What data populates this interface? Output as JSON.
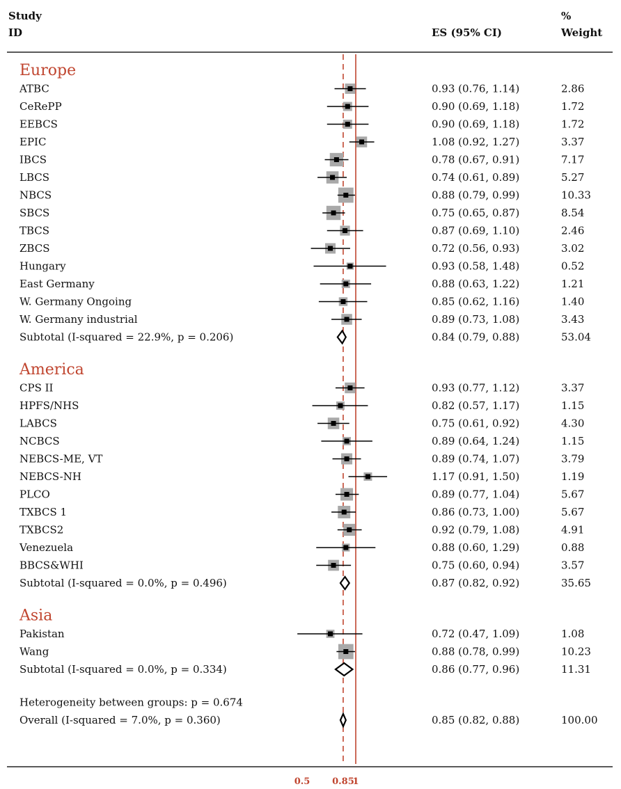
{
  "header": {
    "col_study_line1": "Study",
    "col_study_line2": "ID",
    "col_es": "ES (95% CI)",
    "col_weight_line1": "%",
    "col_weight_line2": "Weight"
  },
  "chart_data": {
    "type": "forest",
    "x_scale": "log",
    "xlim": [
      0.44,
      1.6
    ],
    "x_ticks": [
      "0.5",
      "0.85",
      "1"
    ],
    "reference_line": 1,
    "overall_line": 0.85,
    "colors": {
      "group_title": "#c0452f",
      "reference_line": "#c0452f",
      "box": "#a9a9a9",
      "line": "#000000"
    },
    "rows": [
      {
        "kind": "group",
        "label": "Europe"
      },
      {
        "kind": "study",
        "label": "ATBC",
        "es": 0.93,
        "lo": 0.76,
        "hi": 1.14,
        "ci_text": "0.93 (0.76, 1.14)",
        "weight": 2.86,
        "weight_text": "2.86"
      },
      {
        "kind": "study",
        "label": "CeRePP",
        "es": 0.9,
        "lo": 0.69,
        "hi": 1.18,
        "ci_text": "0.90 (0.69, 1.18)",
        "weight": 1.72,
        "weight_text": "1.72"
      },
      {
        "kind": "study",
        "label": "EEBCS",
        "es": 0.9,
        "lo": 0.69,
        "hi": 1.18,
        "ci_text": "0.90 (0.69, 1.18)",
        "weight": 1.72,
        "weight_text": "1.72"
      },
      {
        "kind": "study",
        "label": "EPIC",
        "es": 1.08,
        "lo": 0.92,
        "hi": 1.27,
        "ci_text": "1.08 (0.92, 1.27)",
        "weight": 3.37,
        "weight_text": "3.37"
      },
      {
        "kind": "study",
        "label": "IBCS",
        "es": 0.78,
        "lo": 0.67,
        "hi": 0.91,
        "ci_text": "0.78 (0.67, 0.91)",
        "weight": 7.17,
        "weight_text": "7.17"
      },
      {
        "kind": "study",
        "label": "LBCS",
        "es": 0.74,
        "lo": 0.61,
        "hi": 0.89,
        "ci_text": "0.74 (0.61, 0.89)",
        "weight": 5.27,
        "weight_text": "5.27"
      },
      {
        "kind": "study",
        "label": "NBCS",
        "es": 0.88,
        "lo": 0.79,
        "hi": 0.99,
        "ci_text": "0.88 (0.79, 0.99)",
        "weight": 10.33,
        "weight_text": "10.33"
      },
      {
        "kind": "study",
        "label": "SBCS",
        "es": 0.75,
        "lo": 0.65,
        "hi": 0.87,
        "ci_text": "0.75 (0.65, 0.87)",
        "weight": 8.54,
        "weight_text": "8.54"
      },
      {
        "kind": "study",
        "label": "TBCS",
        "es": 0.87,
        "lo": 0.69,
        "hi": 1.1,
        "ci_text": "0.87 (0.69, 1.10)",
        "weight": 2.46,
        "weight_text": "2.46"
      },
      {
        "kind": "study",
        "label": "ZBCS",
        "es": 0.72,
        "lo": 0.56,
        "hi": 0.93,
        "ci_text": "0.72 (0.56, 0.93)",
        "weight": 3.02,
        "weight_text": "3.02"
      },
      {
        "kind": "study",
        "label": "Hungary",
        "es": 0.93,
        "lo": 0.58,
        "hi": 1.48,
        "ci_text": "0.93 (0.58, 1.48)",
        "weight": 0.52,
        "weight_text": "0.52"
      },
      {
        "kind": "study",
        "label": "East Germany",
        "es": 0.88,
        "lo": 0.63,
        "hi": 1.22,
        "ci_text": "0.88 (0.63, 1.22)",
        "weight": 1.21,
        "weight_text": "1.21"
      },
      {
        "kind": "study",
        "label": "W. Germany Ongoing",
        "es": 0.85,
        "lo": 0.62,
        "hi": 1.16,
        "ci_text": "0.85 (0.62, 1.16)",
        "weight": 1.4,
        "weight_text": "1.40"
      },
      {
        "kind": "study",
        "label": "W. Germany industrial",
        "es": 0.89,
        "lo": 0.73,
        "hi": 1.08,
        "ci_text": "0.89 (0.73, 1.08)",
        "weight": 3.43,
        "weight_text": "3.43"
      },
      {
        "kind": "subtotal",
        "label": "Subtotal  (I-squared = 22.9%, p = 0.206)",
        "es": 0.84,
        "lo": 0.79,
        "hi": 0.88,
        "ci_text": "0.84 (0.79, 0.88)",
        "weight": 53.04,
        "weight_text": "53.04"
      },
      {
        "kind": "spacer"
      },
      {
        "kind": "group",
        "label": "America"
      },
      {
        "kind": "study",
        "label": "CPS II",
        "es": 0.93,
        "lo": 0.77,
        "hi": 1.12,
        "ci_text": "0.93 (0.77, 1.12)",
        "weight": 3.37,
        "weight_text": "3.37"
      },
      {
        "kind": "study",
        "label": "HPFS/NHS",
        "es": 0.82,
        "lo": 0.57,
        "hi": 1.17,
        "ci_text": "0.82 (0.57, 1.17)",
        "weight": 1.15,
        "weight_text": "1.15"
      },
      {
        "kind": "study",
        "label": "LABCS",
        "es": 0.75,
        "lo": 0.61,
        "hi": 0.92,
        "ci_text": "0.75 (0.61, 0.92)",
        "weight": 4.3,
        "weight_text": "4.30"
      },
      {
        "kind": "study",
        "label": "NCBCS",
        "es": 0.89,
        "lo": 0.64,
        "hi": 1.24,
        "ci_text": "0.89 (0.64, 1.24)",
        "weight": 1.15,
        "weight_text": "1.15"
      },
      {
        "kind": "study",
        "label": "NEBCS-ME, VT",
        "es": 0.89,
        "lo": 0.74,
        "hi": 1.07,
        "ci_text": "0.89 (0.74, 1.07)",
        "weight": 3.79,
        "weight_text": "3.79"
      },
      {
        "kind": "study",
        "label": "NEBCS-NH",
        "es": 1.17,
        "lo": 0.91,
        "hi": 1.5,
        "ci_text": "1.17 (0.91, 1.50)",
        "weight": 1.19,
        "weight_text": "1.19"
      },
      {
        "kind": "study",
        "label": "PLCO",
        "es": 0.89,
        "lo": 0.77,
        "hi": 1.04,
        "ci_text": "0.89 (0.77, 1.04)",
        "weight": 5.67,
        "weight_text": "5.67"
      },
      {
        "kind": "study",
        "label": "TXBCS 1",
        "es": 0.86,
        "lo": 0.73,
        "hi": 1.0,
        "ci_text": "0.86 (0.73, 1.00)",
        "weight": 5.67,
        "weight_text": "5.67"
      },
      {
        "kind": "study",
        "label": "TXBCS2",
        "es": 0.92,
        "lo": 0.79,
        "hi": 1.08,
        "ci_text": "0.92 (0.79, 1.08)",
        "weight": 4.91,
        "weight_text": "4.91"
      },
      {
        "kind": "study",
        "label": "Venezuela",
        "es": 0.88,
        "lo": 0.6,
        "hi": 1.29,
        "ci_text": "0.88 (0.60, 1.29)",
        "weight": 0.88,
        "weight_text": "0.88"
      },
      {
        "kind": "study",
        "label": "BBCS&WHI",
        "es": 0.75,
        "lo": 0.6,
        "hi": 0.94,
        "ci_text": "0.75 (0.60, 0.94)",
        "weight": 3.57,
        "weight_text": "3.57"
      },
      {
        "kind": "subtotal",
        "label": "Subtotal  (I-squared = 0.0%, p = 0.496)",
        "es": 0.87,
        "lo": 0.82,
        "hi": 0.92,
        "ci_text": "0.87 (0.82, 0.92)",
        "weight": 35.65,
        "weight_text": "35.65"
      },
      {
        "kind": "spacer"
      },
      {
        "kind": "group",
        "label": "Asia"
      },
      {
        "kind": "study",
        "label": "Pakistan",
        "es": 0.72,
        "lo": 0.47,
        "hi": 1.09,
        "ci_text": "0.72 (0.47, 1.09)",
        "weight": 1.08,
        "weight_text": "1.08"
      },
      {
        "kind": "study",
        "label": "Wang",
        "es": 0.88,
        "lo": 0.78,
        "hi": 0.99,
        "ci_text": "0.88 (0.78, 0.99)",
        "weight": 10.23,
        "weight_text": "10.23"
      },
      {
        "kind": "subtotal",
        "label": "Subtotal  (I-squared = 0.0%, p = 0.334)",
        "es": 0.86,
        "lo": 0.77,
        "hi": 0.96,
        "ci_text": "0.86 (0.77, 0.96)",
        "weight": 11.31,
        "weight_text": "11.31"
      },
      {
        "kind": "spacer"
      },
      {
        "kind": "note",
        "label": "Heterogeneity between groups: p = 0.674"
      },
      {
        "kind": "overall",
        "label": "Overall  (I-squared = 7.0%, p = 0.360)",
        "es": 0.85,
        "lo": 0.82,
        "hi": 0.88,
        "ci_text": "0.85 (0.82, 0.88)",
        "weight": 100.0,
        "weight_text": "100.00"
      }
    ]
  }
}
